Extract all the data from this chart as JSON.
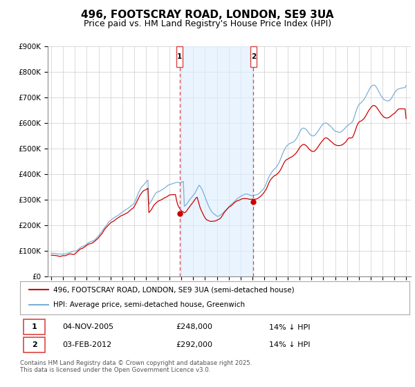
{
  "title": "496, FOOTSCRAY ROAD, LONDON, SE9 3UA",
  "subtitle": "Price paid vs. HM Land Registry's House Price Index (HPI)",
  "title_fontsize": 11,
  "subtitle_fontsize": 9,
  "ylim": [
    0,
    900000
  ],
  "yticks": [
    0,
    100000,
    200000,
    300000,
    400000,
    500000,
    600000,
    700000,
    800000,
    900000
  ],
  "ytick_labels": [
    "£0",
    "£100K",
    "£200K",
    "£300K",
    "£400K",
    "£500K",
    "£600K",
    "£700K",
    "£800K",
    "£900K"
  ],
  "x_start_year": 1995,
  "x_end_year": 2026,
  "marker1_year": 2005.85,
  "marker2_year": 2012.09,
  "shade_color": "#ddeeff",
  "shade_alpha": 0.6,
  "vline_color": "#dd4444",
  "sale1_date": "04-NOV-2005",
  "sale1_price": "£248,000",
  "sale1_hpi": "14% ↓ HPI",
  "sale2_date": "03-FEB-2012",
  "sale2_price": "£292,000",
  "sale2_hpi": "14% ↓ HPI",
  "legend_label1": "496, FOOTSCRAY ROAD, LONDON, SE9 3UA (semi-detached house)",
  "legend_label2": "HPI: Average price, semi-detached house, Greenwich",
  "line1_color": "#cc0000",
  "line2_color": "#7bafd4",
  "footer": "Contains HM Land Registry data © Crown copyright and database right 2025.\nThis data is licensed under the Open Government Licence v3.0.",
  "background_color": "#ffffff",
  "hpi_years": [
    1995.0,
    1995.083,
    1995.167,
    1995.25,
    1995.333,
    1995.417,
    1995.5,
    1995.583,
    1995.667,
    1995.75,
    1995.833,
    1995.917,
    1996.0,
    1996.083,
    1996.167,
    1996.25,
    1996.333,
    1996.417,
    1996.5,
    1996.583,
    1996.667,
    1996.75,
    1996.833,
    1996.917,
    1997.0,
    1997.083,
    1997.167,
    1997.25,
    1997.333,
    1997.417,
    1997.5,
    1997.583,
    1997.667,
    1997.75,
    1997.833,
    1997.917,
    1998.0,
    1998.083,
    1998.167,
    1998.25,
    1998.333,
    1998.417,
    1998.5,
    1998.583,
    1998.667,
    1998.75,
    1998.833,
    1998.917,
    1999.0,
    1999.083,
    1999.167,
    1999.25,
    1999.333,
    1999.417,
    1999.5,
    1999.583,
    1999.667,
    1999.75,
    1999.833,
    1999.917,
    2000.0,
    2000.083,
    2000.167,
    2000.25,
    2000.333,
    2000.417,
    2000.5,
    2000.583,
    2000.667,
    2000.75,
    2000.833,
    2000.917,
    2001.0,
    2001.083,
    2001.167,
    2001.25,
    2001.333,
    2001.417,
    2001.5,
    2001.583,
    2001.667,
    2001.75,
    2001.833,
    2001.917,
    2002.0,
    2002.083,
    2002.167,
    2002.25,
    2002.333,
    2002.417,
    2002.5,
    2002.583,
    2002.667,
    2002.75,
    2002.833,
    2002.917,
    2003.0,
    2003.083,
    2003.167,
    2003.25,
    2003.333,
    2003.417,
    2003.5,
    2003.583,
    2003.667,
    2003.75,
    2003.833,
    2003.917,
    2004.0,
    2004.083,
    2004.167,
    2004.25,
    2004.333,
    2004.417,
    2004.5,
    2004.583,
    2004.667,
    2004.75,
    2004.833,
    2004.917,
    2005.0,
    2005.083,
    2005.167,
    2005.25,
    2005.333,
    2005.417,
    2005.5,
    2005.583,
    2005.667,
    2005.75,
    2005.833,
    2005.917,
    2006.0,
    2006.083,
    2006.167,
    2006.25,
    2006.333,
    2006.417,
    2006.5,
    2006.583,
    2006.667,
    2006.75,
    2006.833,
    2006.917,
    2007.0,
    2007.083,
    2007.167,
    2007.25,
    2007.333,
    2007.417,
    2007.5,
    2007.583,
    2007.667,
    2007.75,
    2007.833,
    2007.917,
    2008.0,
    2008.083,
    2008.167,
    2008.25,
    2008.333,
    2008.417,
    2008.5,
    2008.583,
    2008.667,
    2008.75,
    2008.833,
    2008.917,
    2009.0,
    2009.083,
    2009.167,
    2009.25,
    2009.333,
    2009.417,
    2009.5,
    2009.583,
    2009.667,
    2009.75,
    2009.833,
    2009.917,
    2010.0,
    2010.083,
    2010.167,
    2010.25,
    2010.333,
    2010.417,
    2010.5,
    2010.583,
    2010.667,
    2010.75,
    2010.833,
    2010.917,
    2011.0,
    2011.083,
    2011.167,
    2011.25,
    2011.333,
    2011.417,
    2011.5,
    2011.583,
    2011.667,
    2011.75,
    2011.833,
    2011.917,
    2012.0,
    2012.083,
    2012.167,
    2012.25,
    2012.333,
    2012.417,
    2012.5,
    2012.583,
    2012.667,
    2012.75,
    2012.833,
    2012.917,
    2013.0,
    2013.083,
    2013.167,
    2013.25,
    2013.333,
    2013.417,
    2013.5,
    2013.583,
    2013.667,
    2013.75,
    2013.833,
    2013.917,
    2014.0,
    2014.083,
    2014.167,
    2014.25,
    2014.333,
    2014.417,
    2014.5,
    2014.583,
    2014.667,
    2014.75,
    2014.833,
    2014.917,
    2015.0,
    2015.083,
    2015.167,
    2015.25,
    2015.333,
    2015.417,
    2015.5,
    2015.583,
    2015.667,
    2015.75,
    2015.833,
    2015.917,
    2016.0,
    2016.083,
    2016.167,
    2016.25,
    2016.333,
    2016.417,
    2016.5,
    2016.583,
    2016.667,
    2016.75,
    2016.833,
    2016.917,
    2017.0,
    2017.083,
    2017.167,
    2017.25,
    2017.333,
    2017.417,
    2017.5,
    2017.583,
    2017.667,
    2017.75,
    2017.833,
    2017.917,
    2018.0,
    2018.083,
    2018.167,
    2018.25,
    2018.333,
    2018.417,
    2018.5,
    2018.583,
    2018.667,
    2018.75,
    2018.833,
    2018.917,
    2019.0,
    2019.083,
    2019.167,
    2019.25,
    2019.333,
    2019.417,
    2019.5,
    2019.583,
    2019.667,
    2019.75,
    2019.833,
    2019.917,
    2020.0,
    2020.083,
    2020.167,
    2020.25,
    2020.333,
    2020.417,
    2020.5,
    2020.583,
    2020.667,
    2020.75,
    2020.833,
    2020.917,
    2021.0,
    2021.083,
    2021.167,
    2021.25,
    2021.333,
    2021.417,
    2021.5,
    2021.583,
    2021.667,
    2021.75,
    2021.833,
    2021.917,
    2022.0,
    2022.083,
    2022.167,
    2022.25,
    2022.333,
    2022.417,
    2022.5,
    2022.583,
    2022.667,
    2022.75,
    2022.833,
    2022.917,
    2023.0,
    2023.083,
    2023.167,
    2023.25,
    2023.333,
    2023.417,
    2023.5,
    2023.583,
    2023.667,
    2023.75,
    2023.833,
    2023.917,
    2024.0,
    2024.083,
    2024.167,
    2024.25,
    2024.333,
    2024.417,
    2024.5,
    2024.583,
    2024.667,
    2024.75,
    2024.833,
    2024.917,
    2025.0
  ],
  "hpi_base": [
    90000,
    90500,
    91000,
    91500,
    91000,
    90500,
    90000,
    89500,
    89000,
    88500,
    88000,
    88500,
    89000,
    89500,
    90000,
    91000,
    92000,
    93000,
    94000,
    95000,
    96000,
    97000,
    98000,
    99000,
    100000,
    102000,
    104000,
    107000,
    110000,
    113000,
    116000,
    118000,
    120000,
    122000,
    124000,
    126000,
    128000,
    130000,
    132000,
    134000,
    136000,
    138000,
    140000,
    143000,
    146000,
    149000,
    152000,
    155000,
    158000,
    163000,
    168000,
    174000,
    180000,
    186000,
    192000,
    197000,
    202000,
    207000,
    212000,
    217000,
    220000,
    223000,
    226000,
    229000,
    232000,
    235000,
    238000,
    240000,
    242000,
    244000,
    246000,
    248000,
    250000,
    253000,
    256000,
    259000,
    262000,
    265000,
    268000,
    271000,
    274000,
    277000,
    280000,
    283000,
    288000,
    295000,
    303000,
    312000,
    321000,
    330000,
    338000,
    345000,
    351000,
    356000,
    360000,
    363000,
    367000,
    372000,
    377000,
    283000,
    288000,
    294000,
    300000,
    307000,
    314000,
    320000,
    325000,
    328000,
    330000,
    332000,
    334000,
    336000,
    338000,
    341000,
    344000,
    347000,
    350000,
    353000,
    356000,
    358000,
    360000,
    361000,
    362000,
    363000,
    364000,
    365000,
    366000,
    367000,
    368000,
    368000,
    368000,
    368000,
    370000,
    372000,
    375000,
    278000,
    281000,
    285000,
    290000,
    295000,
    300000,
    305000,
    310000,
    315000,
    320000,
    325000,
    330000,
    338000,
    346000,
    354000,
    360000,
    355000,
    348000,
    340000,
    330000,
    320000,
    310000,
    300000,
    290000,
    281000,
    272000,
    265000,
    258000,
    253000,
    248000,
    245000,
    242000,
    240000,
    238000,
    238000,
    238000,
    240000,
    242000,
    245000,
    248000,
    252000,
    256000,
    260000,
    264000,
    268000,
    272000,
    276000,
    280000,
    284000,
    288000,
    292000,
    296000,
    299000,
    302000,
    305000,
    308000,
    311000,
    314000,
    317000,
    319000,
    321000,
    322000,
    323000,
    323000,
    323000,
    322000,
    321000,
    320000,
    319000,
    318000,
    318000,
    318000,
    319000,
    320000,
    322000,
    324000,
    327000,
    330000,
    334000,
    338000,
    342000,
    348000,
    355000,
    363000,
    372000,
    381000,
    390000,
    398000,
    405000,
    411000,
    416000,
    420000,
    423000,
    427000,
    432000,
    438000,
    445000,
    453000,
    462000,
    472000,
    482000,
    491000,
    499000,
    506000,
    512000,
    516000,
    519000,
    521000,
    522000,
    523000,
    525000,
    528000,
    532000,
    537000,
    543000,
    550000,
    558000,
    566000,
    572000,
    577000,
    580000,
    581000,
    580000,
    577000,
    573000,
    568000,
    563000,
    558000,
    554000,
    551000,
    550000,
    550000,
    552000,
    555000,
    559000,
    564000,
    570000,
    576000,
    582000,
    588000,
    594000,
    598000,
    601000,
    603000,
    603000,
    602000,
    599000,
    595000,
    591000,
    586000,
    581000,
    577000,
    573000,
    570000,
    568000,
    566000,
    565000,
    564000,
    564000,
    565000,
    567000,
    570000,
    574000,
    579000,
    584000,
    589000,
    593000,
    596000,
    598000,
    600000,
    602000,
    608000,
    620000,
    633000,
    646000,
    657000,
    666000,
    672000,
    676000,
    679000,
    682000,
    686000,
    691000,
    697000,
    704000,
    712000,
    720000,
    728000,
    736000,
    742000,
    746000,
    748000,
    749000,
    748000,
    745000,
    740000,
    734000,
    727000,
    720000,
    713000,
    707000,
    701000,
    696000,
    692000,
    690000,
    688000,
    688000,
    689000,
    691000,
    694000,
    698000,
    703000,
    709000,
    715000,
    720000,
    725000,
    729000,
    733000,
    736000,
    738000,
    739000,
    740000,
    740000,
    740000,
    740000,
    748000
  ],
  "red_base": [
    83000,
    83500,
    84000,
    84500,
    84000,
    83500,
    83000,
    82500,
    82000,
    81500,
    81000,
    81500,
    82000,
    82500,
    83000,
    84000,
    85000,
    86000,
    87000,
    88000,
    89000,
    90000,
    91000,
    92000,
    93000,
    95000,
    97000,
    100000,
    103000,
    106000,
    109000,
    111000,
    113000,
    115000,
    117000,
    119000,
    121000,
    123000,
    125000,
    127000,
    129000,
    131000,
    133000,
    136000,
    139000,
    142000,
    145000,
    148000,
    151000,
    156000,
    161000,
    167000,
    173000,
    179000,
    185000,
    190000,
    195000,
    200000,
    205000,
    210000,
    213000,
    215000,
    217000,
    219000,
    222000,
    225000,
    228000,
    230000,
    232000,
    234000,
    236000,
    238000,
    239000,
    241000,
    243000,
    245000,
    247000,
    249000,
    252000,
    255000,
    258000,
    261000,
    264000,
    267000,
    272000,
    279000,
    287000,
    296000,
    305000,
    314000,
    321000,
    326000,
    331000,
    334000,
    337000,
    339000,
    341000,
    344000,
    347000,
    252000,
    256000,
    261000,
    266000,
    272000,
    278000,
    283000,
    287000,
    291000,
    294000,
    296000,
    298000,
    300000,
    302000,
    304000,
    306000,
    308000,
    310000,
    312000,
    314000,
    316000,
    318000,
    319000,
    320000,
    321000,
    322000,
    322000,
    322000,
    301000,
    285000,
    275000,
    268000,
    262000,
    258000,
    255000,
    253000,
    249000,
    252000,
    256000,
    261000,
    267000,
    272000,
    278000,
    283000,
    288000,
    293000,
    298000,
    303000,
    308000,
    311000,
    299000,
    286000,
    274000,
    263000,
    254000,
    246000,
    239000,
    233000,
    228000,
    224000,
    221000,
    219000,
    217000,
    216000,
    215000,
    215000,
    215000,
    216000,
    218000,
    220000,
    222000,
    225000,
    228000,
    232000,
    237000,
    242000,
    248000,
    254000,
    259000,
    264000,
    268000,
    272000,
    275000,
    278000,
    281000,
    284000,
    287000,
    290000,
    292000,
    295000,
    297000,
    299000,
    301000,
    303000,
    305000,
    306000,
    307000,
    307000,
    307000,
    306000,
    305000,
    304000,
    303000,
    302000,
    301000,
    300000,
    300000,
    300000,
    301000,
    302000,
    304000,
    306000,
    309000,
    312000,
    316000,
    320000,
    324000,
    329000,
    335000,
    342000,
    350000,
    358000,
    366000,
    373000,
    379000,
    384000,
    388000,
    391000,
    393000,
    395000,
    399000,
    403000,
    408000,
    414000,
    421000,
    429000,
    436000,
    443000,
    449000,
    455000,
    459000,
    463000,
    466000,
    468000,
    469000,
    469000,
    470000,
    472000,
    475000,
    479000,
    484000,
    490000,
    497000,
    504000,
    509000,
    513000,
    516000,
    517000,
    516000,
    513000,
    510000,
    506000,
    501000,
    497000,
    494000,
    491000,
    490000,
    490000,
    491000,
    494000,
    498000,
    503000,
    509000,
    515000,
    521000,
    527000,
    533000,
    537000,
    540000,
    542000,
    542000,
    541000,
    539000,
    536000,
    532000,
    528000,
    524000,
    520000,
    517000,
    515000,
    513000,
    512000,
    511000,
    511000,
    511000,
    512000,
    514000,
    517000,
    521000,
    526000,
    530000,
    535000,
    539000,
    542000,
    543000,
    543000,
    544000,
    548000,
    558000,
    569000,
    580000,
    590000,
    598000,
    604000,
    608000,
    610000,
    612000,
    615000,
    618000,
    623000,
    629000,
    636000,
    643000,
    650000,
    657000,
    662000,
    666000,
    668000,
    669000,
    669000,
    667000,
    663000,
    658000,
    652000,
    647000,
    641000,
    636000,
    631000,
    627000,
    623000,
    621000,
    620000,
    620000,
    621000,
    623000,
    625000,
    628000,
    631000,
    634000,
    637000,
    641000,
    645000,
    648000,
    651000,
    653000,
    655000,
    656000,
    657000,
    657000,
    657000,
    657000,
    620000
  ],
  "price_paid_years": [
    2005.85,
    2012.09
  ],
  "price_paid_values": [
    248000,
    292000
  ]
}
